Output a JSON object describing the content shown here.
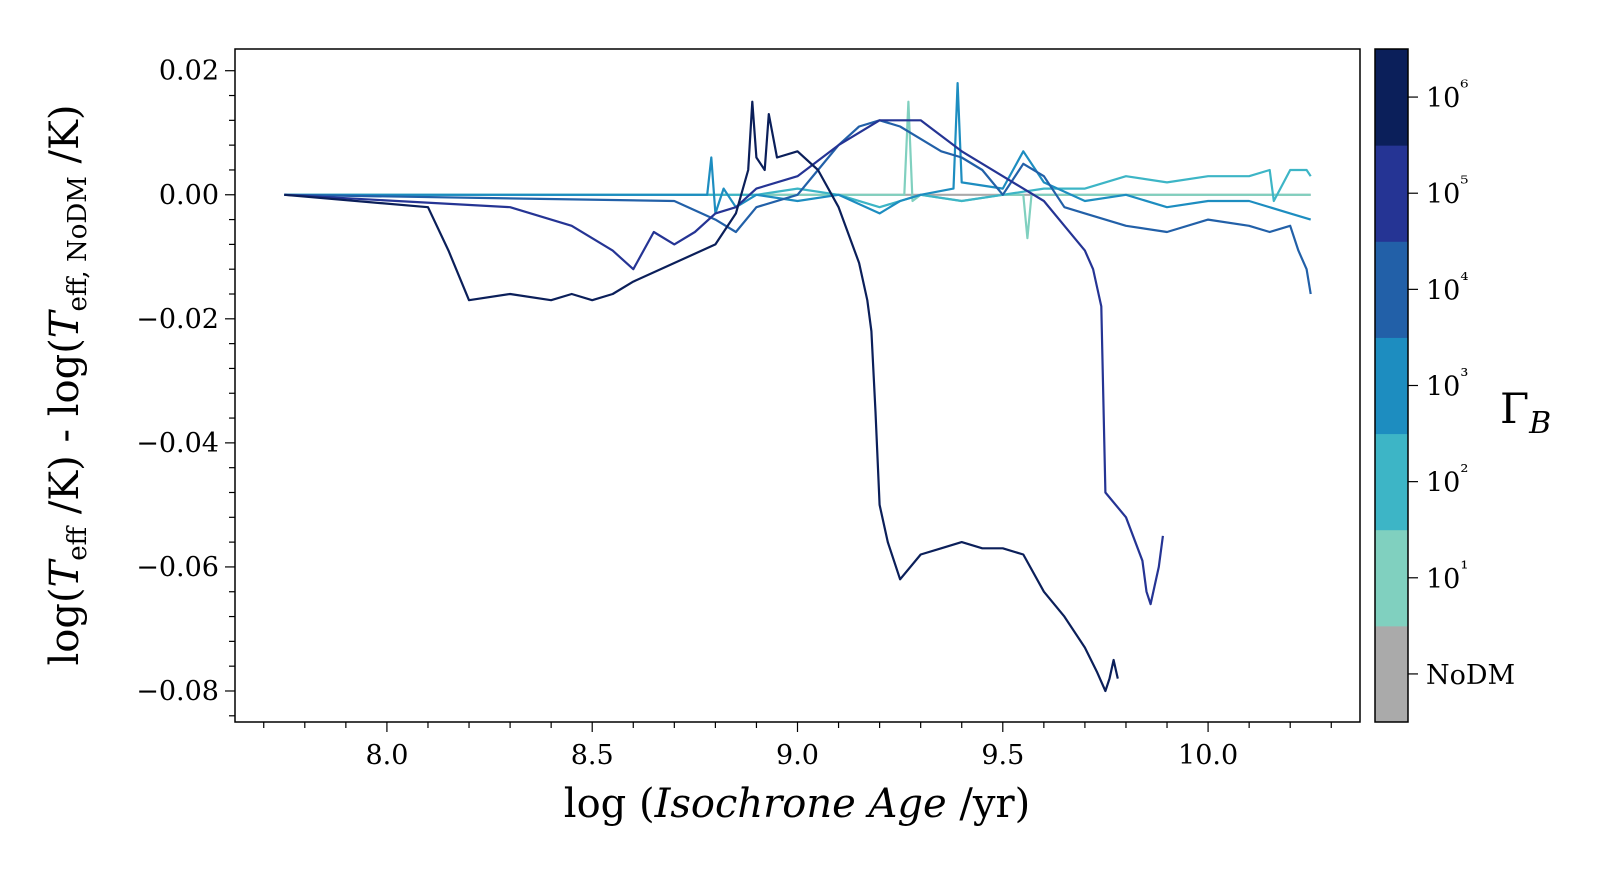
{
  "chart_data": {
    "type": "line",
    "title": "",
    "xlabel": "log (Isochrone Age /yr)",
    "ylabel": "log(Teff /K) - log(Teff, NoDM /K)",
    "xlim": [
      7.63,
      10.37
    ],
    "ylim": [
      -0.085,
      0.0235
    ],
    "x_ticks": [
      8.0,
      8.5,
      9.0,
      9.5,
      10.0
    ],
    "x_tick_labels": [
      "8.0",
      "8.5",
      "9.0",
      "9.5",
      "10.0"
    ],
    "y_ticks": [
      0.02,
      0.0,
      -0.02,
      -0.04,
      -0.06,
      -0.08
    ],
    "y_tick_labels": [
      "0.02",
      "0.00",
      "−0.02",
      "−0.04",
      "−0.06",
      "−0.08"
    ],
    "grid": false,
    "colorbar": {
      "label": "ΓB",
      "levels": [
        "NoDM",
        "10¹",
        "10²",
        "10³",
        "10⁴",
        "10⁵",
        "10⁶"
      ],
      "colors": [
        "#aaaaaa",
        "#80d0bf",
        "#3db5c6",
        "#1d8dc0",
        "#2260a8",
        "#253494",
        "#0b1f5a"
      ]
    },
    "series": [
      {
        "level": "NoDM",
        "color": "#aaaaaa",
        "x": [
          7.75,
          10.25
        ],
        "y": [
          0.0,
          0.0
        ]
      },
      {
        "level": "10¹",
        "color": "#80d0bf",
        "x": [
          7.75,
          8.5,
          8.8,
          9.0,
          9.2,
          9.26,
          9.27,
          9.28,
          9.3,
          9.4,
          9.5,
          9.55,
          9.56,
          9.57,
          9.6,
          9.7,
          9.8,
          9.9,
          10.0,
          10.1,
          10.2,
          10.25
        ],
        "y": [
          0.0,
          0.0,
          0.0,
          0.0,
          0.0,
          0.0,
          0.015,
          -0.001,
          0.0,
          -0.001,
          0.0,
          0.0,
          -0.007,
          0.0,
          0.0,
          0.0,
          0.0,
          0.0,
          0.0,
          0.0,
          0.0,
          0.0
        ]
      },
      {
        "level": "10²",
        "color": "#3db5c6",
        "x": [
          7.75,
          8.6,
          8.9,
          9.0,
          9.1,
          9.2,
          9.3,
          9.4,
          9.5,
          9.6,
          9.7,
          9.8,
          9.9,
          10.0,
          10.1,
          10.15,
          10.16,
          10.2,
          10.24,
          10.25
        ],
        "y": [
          0.0,
          0.0,
          0.0,
          0.001,
          0.0,
          -0.002,
          0.0,
          -0.001,
          0.0,
          0.001,
          0.001,
          0.003,
          0.002,
          0.003,
          0.003,
          0.004,
          -0.001,
          0.004,
          0.004,
          0.003
        ]
      },
      {
        "level": "10³",
        "color": "#1d8dc0",
        "x": [
          7.75,
          8.75,
          8.78,
          8.79,
          8.8,
          8.82,
          8.85,
          8.9,
          9.0,
          9.1,
          9.2,
          9.25,
          9.3,
          9.38,
          9.39,
          9.4,
          9.5,
          9.55,
          9.6,
          9.7,
          9.8,
          9.9,
          10.0,
          10.1,
          10.2,
          10.25
        ],
        "y": [
          0.0,
          0.0,
          0.0,
          0.006,
          -0.003,
          0.001,
          -0.002,
          0.0,
          -0.001,
          0.0,
          -0.003,
          -0.001,
          0.0,
          0.001,
          0.018,
          0.002,
          0.001,
          0.007,
          0.002,
          -0.001,
          0.0,
          -0.002,
          -0.001,
          -0.001,
          -0.003,
          -0.004
        ]
      },
      {
        "level": "10⁴",
        "color": "#2260a8",
        "x": [
          7.75,
          8.7,
          8.8,
          8.85,
          8.9,
          9.0,
          9.05,
          9.1,
          9.15,
          9.2,
          9.25,
          9.3,
          9.35,
          9.4,
          9.45,
          9.5,
          9.55,
          9.6,
          9.65,
          9.7,
          9.8,
          9.9,
          10.0,
          10.1,
          10.15,
          10.2,
          10.22,
          10.24,
          10.25
        ],
        "y": [
          0.0,
          -0.001,
          -0.004,
          -0.006,
          -0.002,
          0.0,
          0.004,
          0.008,
          0.011,
          0.012,
          0.011,
          0.009,
          0.007,
          0.006,
          0.004,
          0.0,
          0.005,
          0.003,
          -0.002,
          -0.003,
          -0.005,
          -0.006,
          -0.004,
          -0.005,
          -0.006,
          -0.005,
          -0.009,
          -0.012,
          -0.016
        ]
      },
      {
        "level": "10⁵",
        "color": "#253494",
        "x": [
          7.75,
          8.3,
          8.45,
          8.55,
          8.6,
          8.65,
          8.7,
          8.75,
          8.8,
          8.85,
          8.9,
          9.0,
          9.1,
          9.2,
          9.3,
          9.4,
          9.5,
          9.55,
          9.6,
          9.65,
          9.7,
          9.72,
          9.73,
          9.74,
          9.75,
          9.8,
          9.84,
          9.85,
          9.86,
          9.87,
          9.88,
          9.89
        ],
        "y": [
          0.0,
          -0.002,
          -0.005,
          -0.009,
          -0.012,
          -0.006,
          -0.008,
          -0.006,
          -0.003,
          -0.002,
          0.001,
          0.003,
          0.008,
          0.012,
          0.012,
          0.007,
          0.003,
          0.001,
          -0.001,
          -0.005,
          -0.009,
          -0.012,
          -0.015,
          -0.018,
          -0.048,
          -0.052,
          -0.059,
          -0.064,
          -0.066,
          -0.063,
          -0.06,
          -0.055
        ]
      },
      {
        "level": "10⁶",
        "color": "#0b1f5a",
        "x": [
          7.75,
          8.1,
          8.15,
          8.2,
          8.3,
          8.4,
          8.45,
          8.5,
          8.55,
          8.6,
          8.7,
          8.8,
          8.85,
          8.88,
          8.89,
          8.9,
          8.92,
          8.93,
          8.95,
          9.0,
          9.05,
          9.1,
          9.15,
          9.17,
          9.18,
          9.19,
          9.2,
          9.22,
          9.25,
          9.3,
          9.35,
          9.4,
          9.45,
          9.5,
          9.55,
          9.6,
          9.65,
          9.7,
          9.73,
          9.75,
          9.76,
          9.77,
          9.78
        ],
        "y": [
          0.0,
          -0.002,
          -0.009,
          -0.017,
          -0.016,
          -0.017,
          -0.016,
          -0.017,
          -0.016,
          -0.014,
          -0.011,
          -0.008,
          -0.003,
          0.004,
          0.015,
          0.006,
          0.004,
          0.013,
          0.006,
          0.007,
          0.004,
          -0.002,
          -0.011,
          -0.017,
          -0.022,
          -0.035,
          -0.05,
          -0.056,
          -0.062,
          -0.058,
          -0.057,
          -0.056,
          -0.057,
          -0.057,
          -0.058,
          -0.064,
          -0.068,
          -0.073,
          -0.077,
          -0.08,
          -0.078,
          -0.075,
          -0.078
        ]
      }
    ]
  }
}
